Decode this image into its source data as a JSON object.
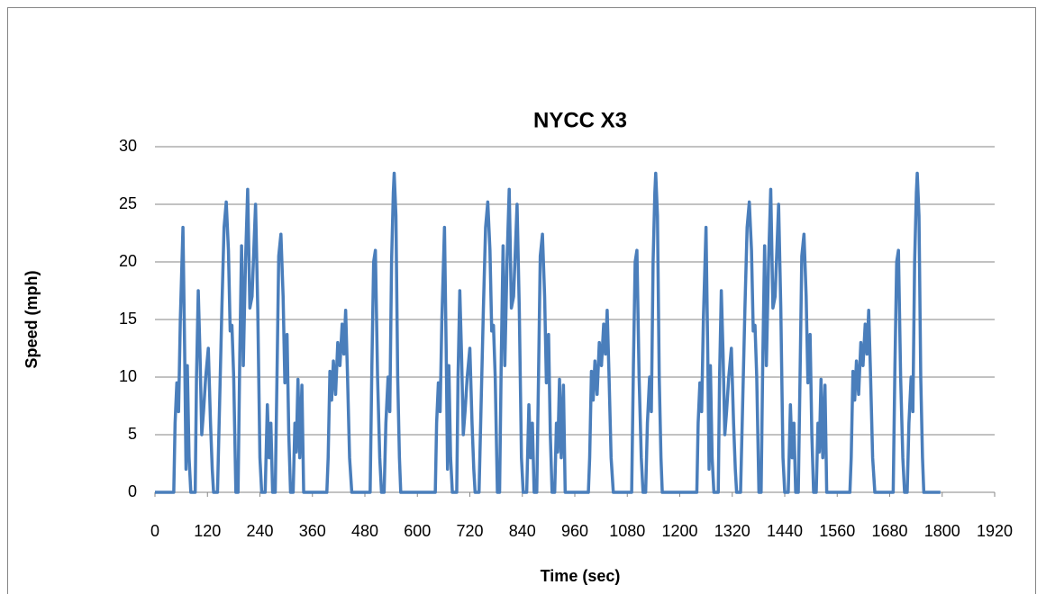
{
  "chart_data": {
    "type": "line",
    "title": "NYCC X3",
    "x_label": "Time (sec)",
    "y_label": "Speed (mph)",
    "color": "#4a7ebb",
    "xlim": [
      0,
      1920
    ],
    "xticks": [
      0,
      120,
      240,
      360,
      480,
      600,
      720,
      840,
      960,
      1080,
      1200,
      1320,
      1440,
      1560,
      1680,
      1800,
      1920
    ],
    "ylim": [
      0,
      30
    ],
    "yticks": [
      0,
      5,
      10,
      15,
      20,
      25,
      30
    ],
    "grid": true,
    "x": [
      0,
      43,
      46,
      50,
      54,
      58,
      64,
      68,
      71,
      74,
      78,
      82,
      92,
      95,
      99,
      103,
      107,
      111,
      116,
      122,
      127,
      131,
      134,
      143,
      148,
      153,
      158,
      163,
      168,
      172,
      176,
      180,
      185,
      190,
      194,
      198,
      202,
      207,
      212,
      217,
      222,
      230,
      235,
      240,
      244,
      252,
      257,
      261,
      265,
      269,
      275,
      279,
      283,
      288,
      293,
      297,
      302,
      306,
      310,
      316,
      320,
      323,
      327,
      331,
      336,
      340,
      393,
      396,
      400,
      404,
      408,
      413,
      418,
      423,
      428,
      432,
      436,
      440,
      445,
      450,
      492,
      496,
      500,
      504,
      509,
      514,
      518,
      524,
      528,
      533,
      537,
      541,
      545,
      547,
      551,
      555,
      559,
      562,
      598,
      641,
      644,
      648,
      652,
      656,
      662,
      666,
      669,
      672,
      676,
      680,
      690,
      693,
      697,
      701,
      705,
      709,
      714,
      720,
      725,
      729,
      732,
      741,
      746,
      751,
      756,
      761,
      766,
      770,
      774,
      778,
      783,
      788,
      792,
      796,
      800,
      805,
      810,
      815,
      820,
      828,
      833,
      838,
      842,
      850,
      855,
      859,
      863,
      867,
      873,
      877,
      881,
      886,
      891,
      895,
      900,
      904,
      908,
      914,
      918,
      921,
      925,
      929,
      934,
      938,
      991,
      994,
      998,
      1002,
      1006,
      1011,
      1016,
      1021,
      1026,
      1030,
      1034,
      1038,
      1043,
      1048,
      1090,
      1094,
      1098,
      1102,
      1107,
      1112,
      1116,
      1122,
      1126,
      1131,
      1135,
      1139,
      1143,
      1145,
      1149,
      1153,
      1157,
      1160,
      1196,
      1239,
      1242,
      1246,
      1250,
      1254,
      1260,
      1264,
      1267,
      1270,
      1274,
      1278,
      1288,
      1291,
      1295,
      1299,
      1303,
      1307,
      1312,
      1318,
      1323,
      1327,
      1330,
      1339,
      1344,
      1349,
      1354,
      1359,
      1364,
      1368,
      1372,
      1376,
      1381,
      1386,
      1390,
      1394,
      1398,
      1403,
      1408,
      1413,
      1418,
      1426,
      1431,
      1436,
      1440,
      1448,
      1453,
      1457,
      1461,
      1465,
      1471,
      1475,
      1479,
      1484,
      1489,
      1493,
      1498,
      1502,
      1506,
      1512,
      1516,
      1519,
      1523,
      1527,
      1532,
      1536,
      1589,
      1592,
      1596,
      1600,
      1604,
      1609,
      1614,
      1619,
      1624,
      1628,
      1632,
      1636,
      1641,
      1646,
      1688,
      1692,
      1696,
      1700,
      1705,
      1710,
      1714,
      1720,
      1724,
      1729,
      1733,
      1737,
      1741,
      1743,
      1747,
      1751,
      1755,
      1758,
      1796
    ],
    "values": [
      0,
      0,
      6,
      9.5,
      7,
      15,
      23,
      12,
      2,
      11,
      3,
      0,
      0,
      10,
      17.5,
      12,
      5,
      7,
      10,
      12.5,
      6,
      2,
      0,
      0,
      8,
      16,
      23,
      25.2,
      21,
      14,
      14.5,
      10,
      0,
      0,
      12,
      21.4,
      11,
      20,
      26.3,
      16,
      17,
      25,
      16,
      3,
      0,
      0,
      7.6,
      3,
      6,
      0,
      0,
      10,
      20.5,
      22.4,
      17,
      9.5,
      13.7,
      5,
      0,
      0,
      6,
      3.5,
      9.8,
      3,
      9.3,
      0,
      0,
      3,
      10.5,
      8,
      11.4,
      8.5,
      13,
      11,
      14.6,
      12,
      15.8,
      10.5,
      3,
      0,
      0,
      11,
      20,
      21,
      10,
      3,
      0,
      0,
      6,
      10,
      7,
      20,
      26,
      27.7,
      24,
      10,
      3,
      0,
      0,
      0,
      6,
      9.5,
      7,
      15,
      23,
      12,
      2,
      11,
      3,
      0,
      0,
      10,
      17.5,
      12,
      5,
      7,
      10,
      12.5,
      6,
      2,
      0,
      0,
      8,
      16,
      23,
      25.2,
      21,
      14,
      14.5,
      10,
      0,
      0,
      12,
      21.4,
      11,
      20,
      26.3,
      16,
      17,
      25,
      16,
      3,
      0,
      0,
      7.6,
      3,
      6,
      0,
      0,
      10,
      20.5,
      22.4,
      17,
      9.5,
      13.7,
      5,
      0,
      0,
      6,
      3.5,
      9.8,
      3,
      9.3,
      0,
      0,
      3,
      10.5,
      8,
      11.4,
      8.5,
      13,
      11,
      14.6,
      12,
      15.8,
      10.5,
      3,
      0,
      0,
      11,
      20,
      21,
      10,
      3,
      0,
      0,
      6,
      10,
      7,
      20,
      26,
      27.7,
      24,
      10,
      3,
      0,
      0,
      0,
      6,
      9.5,
      7,
      15,
      23,
      12,
      2,
      11,
      3,
      0,
      0,
      10,
      17.5,
      12,
      5,
      7,
      10,
      12.5,
      6,
      2,
      0,
      0,
      8,
      16,
      23,
      25.2,
      21,
      14,
      14.5,
      10,
      0,
      0,
      12,
      21.4,
      11,
      20,
      26.3,
      16,
      17,
      25,
      16,
      3,
      0,
      0,
      7.6,
      3,
      6,
      0,
      0,
      10,
      20.5,
      22.4,
      17,
      9.5,
      13.7,
      5,
      0,
      0,
      6,
      3.5,
      9.8,
      3,
      9.3,
      0,
      0,
      3,
      10.5,
      8,
      11.4,
      8.5,
      13,
      11,
      14.6,
      12,
      15.8,
      10.5,
      3,
      0,
      0,
      11,
      20,
      21,
      10,
      3,
      0,
      0,
      6,
      10,
      7,
      20,
      26,
      27.7,
      24,
      10,
      3,
      0,
      0
    ]
  }
}
